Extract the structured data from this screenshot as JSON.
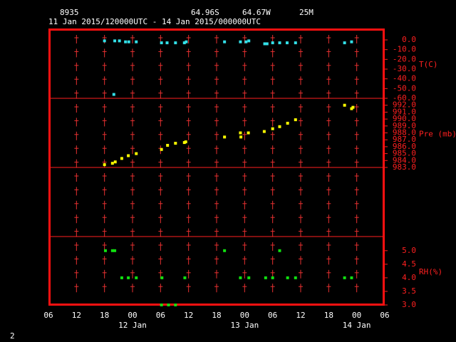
{
  "header": {
    "station": "8935",
    "lat": "64.96S",
    "lon": "64.67W",
    "elevation": "25M",
    "period": "11 Jan 2015/120000UTC - 14 Jan 2015/000000UTC",
    "page": "2"
  },
  "chart_data": [
    {
      "type": "scatter",
      "ylabel": "T(C)",
      "color": "#33e0e8",
      "xlim": [
        0,
        72
      ],
      "ylim": [
        -60,
        11.7
      ],
      "yticks": [
        {
          "value": 0,
          "label": "0.0"
        },
        {
          "value": -10,
          "label": "-10.0"
        },
        {
          "value": -20,
          "label": "-20.0"
        },
        {
          "value": -30,
          "label": "-30.0"
        },
        {
          "value": -40,
          "label": "-40.0"
        },
        {
          "value": -50,
          "label": "-50.0"
        },
        {
          "value": -60,
          "label": "-60.0"
        }
      ],
      "x": [
        12,
        14,
        14.2,
        15.2,
        16.5,
        17.2,
        18.8,
        24.2,
        25.4,
        27.2,
        29.1,
        29.5,
        37.7,
        41.1,
        42.3,
        42.9,
        46.3,
        46.8,
        48,
        49.5,
        51.1,
        52.9,
        63.4,
        64.9
      ],
      "values": [
        -1,
        -56,
        -1,
        -1,
        -2,
        -2,
        -2,
        -3,
        -3,
        -3,
        -3,
        -2,
        -2,
        -2,
        -2,
        -1,
        -4,
        -4,
        -3,
        -3,
        -3,
        -3,
        -3,
        -2
      ]
    },
    {
      "type": "scatter",
      "ylabel": "Pre (mb)",
      "color": "#ffff00",
      "xlim": [
        0,
        72
      ],
      "ylim": [
        983,
        993
      ],
      "yticks": [
        {
          "value": 992,
          "label": "992.0"
        },
        {
          "value": 991,
          "label": "991.0"
        },
        {
          "value": 990,
          "label": "990.0"
        },
        {
          "value": 989,
          "label": "989.0"
        },
        {
          "value": 988,
          "label": "988.0"
        },
        {
          "value": 987,
          "label": "987.0"
        },
        {
          "value": 986,
          "label": "986.0"
        },
        {
          "value": 985,
          "label": "985.0"
        },
        {
          "value": 984,
          "label": "984.0"
        },
        {
          "value": 983,
          "label": "983.0"
        }
      ],
      "x": [
        12,
        13.7,
        14.3,
        15.7,
        17.1,
        18.8,
        24.2,
        25.5,
        27.2,
        29.1,
        29.4,
        37.7,
        41.1,
        41.2,
        42.8,
        46.2,
        48,
        49.5,
        51.2,
        52.9,
        63.4,
        64.9,
        65.2
      ],
      "values": [
        983.4,
        983.6,
        983.8,
        984.3,
        984.7,
        985.0,
        985.6,
        986.2,
        986.5,
        986.6,
        986.7,
        987.4,
        988.0,
        987.4,
        988.0,
        988.2,
        988.6,
        988.9,
        989.4,
        989.9,
        992.0,
        991.5,
        991.7
      ]
    },
    {
      "type": "scatter",
      "ylabel": "RH(%)",
      "color": "#10e010",
      "xlim": [
        0,
        72
      ],
      "ylim": [
        3.0,
        5.52
      ],
      "yticks": [
        {
          "value": 5,
          "label": "5.0"
        },
        {
          "value": 4.5,
          "label": "4.5"
        },
        {
          "value": 4,
          "label": "4.0"
        },
        {
          "value": 3.5,
          "label": "3.5"
        },
        {
          "value": 3,
          "label": "3.0"
        }
      ],
      "xticks": [
        {
          "value": 0,
          "label": "06"
        },
        {
          "value": 6,
          "label": "12"
        },
        {
          "value": 12,
          "label": "18"
        },
        {
          "value": 18,
          "label": "00"
        },
        {
          "value": 24,
          "label": "06"
        },
        {
          "value": 30,
          "label": "12"
        },
        {
          "value": 36,
          "label": "18"
        },
        {
          "value": 42,
          "label": "00"
        },
        {
          "value": 48,
          "label": "06"
        },
        {
          "value": 54,
          "label": "12"
        },
        {
          "value": 60,
          "label": "18"
        },
        {
          "value": 66,
          "label": "00"
        },
        {
          "value": 72,
          "label": "06"
        }
      ],
      "date_ticks": [
        {
          "value": 18,
          "label": "12 Jan"
        },
        {
          "value": 42,
          "label": "13 Jan"
        },
        {
          "value": 66,
          "label": "14 Jan"
        }
      ],
      "x": [
        12.2,
        13.7,
        14.2,
        37.7,
        49.5,
        15.7,
        17.1,
        18.8,
        24.3,
        29.2,
        41.1,
        42.9,
        46.5,
        48,
        51.2,
        52.9,
        63.4,
        64.9,
        24.2,
        25.7,
        27.2
      ],
      "values": [
        5,
        5,
        5,
        5,
        5,
        4,
        4,
        4,
        4,
        4,
        4,
        4,
        4,
        4,
        4,
        4,
        4,
        4,
        3,
        3,
        3
      ]
    }
  ]
}
